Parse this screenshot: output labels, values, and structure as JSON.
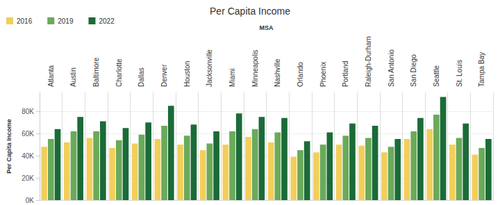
{
  "chart_data": {
    "type": "bar",
    "title": "Per Capita Income",
    "x_label": "MSA",
    "y_label": "Per Capita Income",
    "categories": [
      "Atlanta",
      "Austin",
      "Baltimore",
      "Charlotte",
      "Dallas",
      "Denver",
      "Houston",
      "Jacksonville",
      "Miami",
      "Minneapolis",
      "Nashville",
      "Orlando",
      "Phoenix",
      "Portland",
      "Raleigh-Durham",
      "San Antonio",
      "San Diego",
      "Seattle",
      "St. Louis",
      "Tampa Bay"
    ],
    "series": [
      {
        "name": "2016",
        "color": "#f2cf5b",
        "values": [
          48000,
          52000,
          56000,
          47000,
          51000,
          55000,
          50000,
          45000,
          50000,
          57000,
          52000,
          39000,
          43000,
          50000,
          49000,
          43000,
          55000,
          64000,
          50000,
          41000
        ]
      },
      {
        "name": "2019",
        "color": "#6aaa5a",
        "values": [
          55000,
          62000,
          62000,
          54000,
          59000,
          67000,
          58000,
          51000,
          62000,
          64000,
          61000,
          45000,
          50000,
          58000,
          56000,
          48000,
          62000,
          77000,
          56000,
          47000
        ]
      },
      {
        "name": "2022",
        "color": "#1b6b38",
        "values": [
          64000,
          75000,
          71000,
          65000,
          70000,
          85000,
          68000,
          62000,
          78000,
          75000,
          74000,
          53000,
          61000,
          69000,
          67000,
          55000,
          74000,
          93000,
          69000,
          55000
        ]
      }
    ],
    "ylim": [
      0,
      97000
    ],
    "yticks": [
      {
        "value": 0,
        "label": "0K"
      },
      {
        "value": 20000,
        "label": "20K"
      },
      {
        "value": 40000,
        "label": "40K"
      },
      {
        "value": 60000,
        "label": "60K"
      },
      {
        "value": 80000,
        "label": "80K"
      }
    ],
    "grid": true,
    "legend": "top-left"
  }
}
